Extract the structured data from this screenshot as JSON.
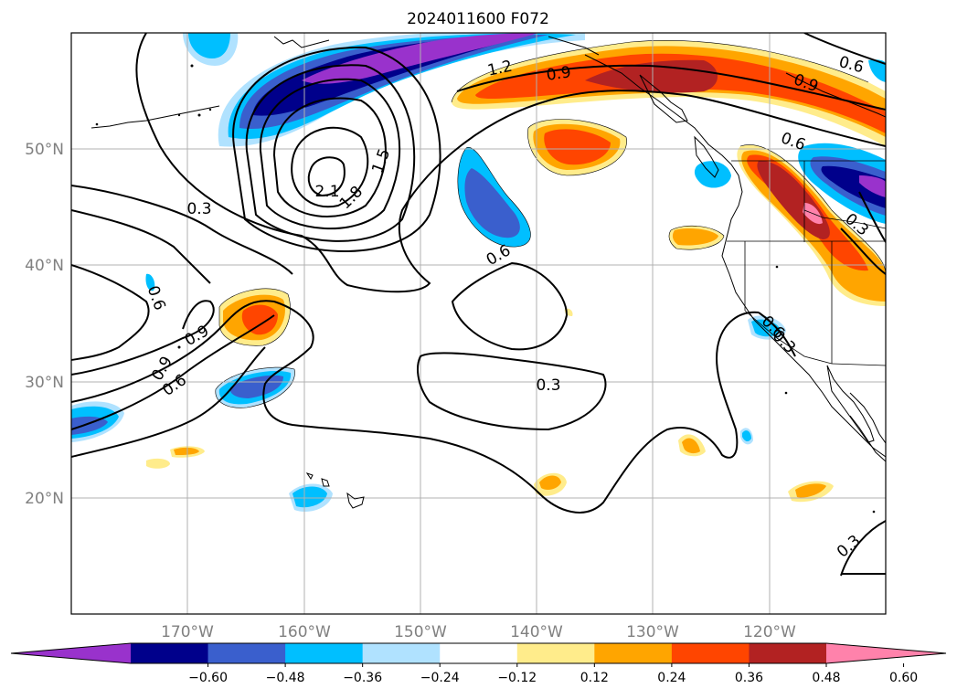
{
  "title": "2024011600 F072",
  "lat_ticks": [
    "50°N",
    "40°N",
    "30°N",
    "20°N"
  ],
  "lon_ticks": [
    "170°W",
    "160°W",
    "150°W",
    "140°W",
    "130°W",
    "120°W"
  ],
  "colorbar": {
    "ticks": [
      "−0.60",
      "−0.48",
      "−0.36",
      "−0.24",
      "−0.12",
      "0.12",
      "0.24",
      "0.36",
      "0.48",
      "0.60"
    ],
    "colors": [
      "#9932cc",
      "#00008b",
      "#3a5fcd",
      "#00bfff",
      "#b0e2ff",
      "#ffffff",
      "#ffec8b",
      "#ffa500",
      "#ff4500",
      "#b22222",
      "#ff82ab"
    ]
  },
  "contour_labels": [
    "2.1",
    "1.8",
    "1.5",
    "1.2",
    "0.9",
    "0.6",
    "0.3",
    "0.3",
    "0.6",
    "0.9",
    "0.6",
    "0.9",
    "0.6",
    "0.6",
    "0.9",
    "0.3",
    "0.6",
    "0.3",
    "0.3"
  ],
  "map_data": {
    "extent": {
      "lon": [
        -180,
        -110
      ],
      "lat": [
        10,
        60
      ]
    },
    "projection": "PlateCarree",
    "gridlines": true,
    "filled_field_bounds": [
      -0.6,
      -0.48,
      -0.36,
      -0.24,
      -0.12,
      0.12,
      0.24,
      0.36,
      0.48,
      0.6
    ],
    "contour_levels": [
      0.3,
      0.6,
      0.9,
      1.2,
      1.5,
      1.8,
      2.1
    ]
  }
}
